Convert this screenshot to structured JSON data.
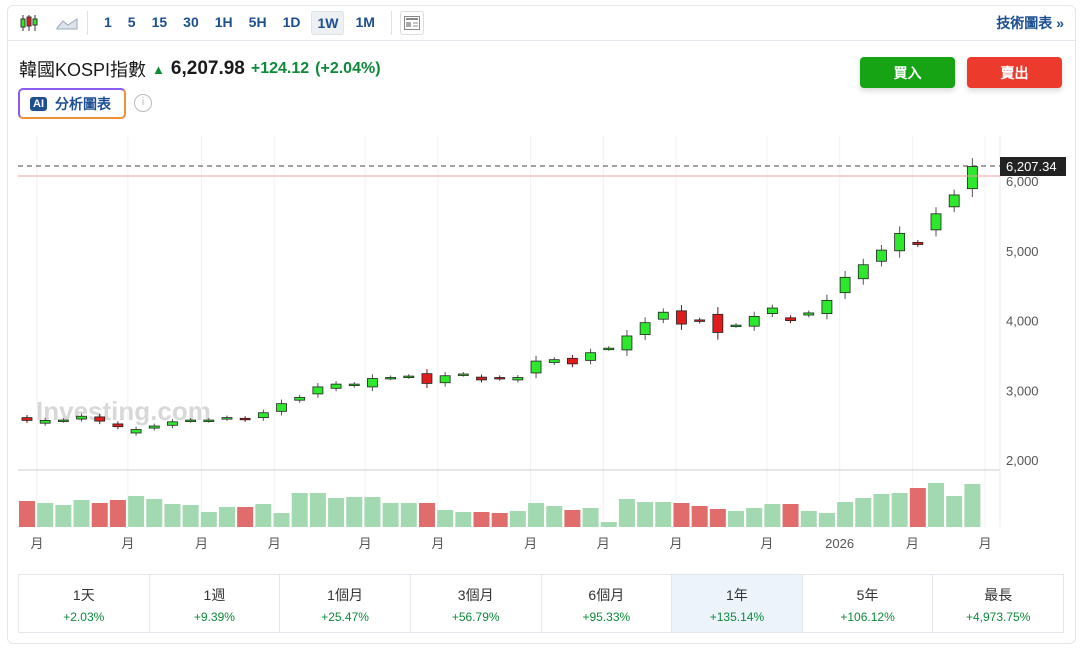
{
  "toolbar": {
    "intervals": [
      "1",
      "5",
      "15",
      "30",
      "1H",
      "5H",
      "1D",
      "1W",
      "1M"
    ],
    "active": "1W",
    "tech_link": "技術圖表 »"
  },
  "header": {
    "name": "韓國KOSPI指數",
    "price": "6,207.98",
    "change": "+124.12",
    "change_pct": "(+2.04%)",
    "ai_badge": "AI",
    "ai_label": "分析圖表",
    "info": "i"
  },
  "actions": {
    "buy": "買入",
    "sell": "賣出"
  },
  "watermark": "Investing.com",
  "colors": {
    "up": "#2ee82e",
    "down": "#e01b1b",
    "buy": "#16a314",
    "sell": "#ec3a2c",
    "link": "#1d4f91"
  },
  "chart_data": {
    "type": "candlestick",
    "last_price_label": "6,207.34",
    "y_ticks": [
      "6,000",
      "5,000",
      "4,000",
      "3,000",
      "2,000"
    ],
    "y_tick_values": [
      6000,
      5000,
      4000,
      3000,
      2000
    ],
    "x_labels": [
      {
        "t": "月",
        "w": 0.55
      },
      {
        "t": "月",
        "w": 5.55
      },
      {
        "t": "月",
        "w": 9.6
      },
      {
        "t": "月",
        "w": 13.6
      },
      {
        "t": "月",
        "w": 18.6
      },
      {
        "t": "月",
        "w": 22.6
      },
      {
        "t": "月",
        "w": 27.7
      },
      {
        "t": "月",
        "w": 31.7
      },
      {
        "t": "月",
        "w": 35.7
      },
      {
        "t": "月",
        "w": 40.7
      },
      {
        "t": "2026",
        "w": 44.7
      },
      {
        "t": "月",
        "w": 48.7
      },
      {
        "t": "月",
        "w": 52.7
      }
    ],
    "candles": [
      [
        2610,
        2570
      ],
      [
        2530,
        2570
      ],
      [
        2565,
        2575
      ],
      [
        2590,
        2630
      ],
      [
        2620,
        2560
      ],
      [
        2520,
        2480
      ],
      [
        2390,
        2440
      ],
      [
        2460,
        2490
      ],
      [
        2500,
        2550
      ],
      [
        2565,
        2575
      ],
      [
        2565,
        2575
      ],
      [
        2595,
        2610
      ],
      [
        2600,
        2580
      ],
      [
        2610,
        2680
      ],
      [
        2700,
        2810
      ],
      [
        2860,
        2900
      ],
      [
        2950,
        3050
      ],
      [
        3030,
        3090
      ],
      [
        3070,
        3090
      ],
      [
        3050,
        3170
      ],
      [
        3175,
        3185
      ],
      [
        3195,
        3205
      ],
      [
        3240,
        3100
      ],
      [
        3110,
        3210
      ],
      [
        3225,
        3235
      ],
      [
        3190,
        3150
      ],
      [
        3185,
        3170
      ],
      [
        3150,
        3185
      ],
      [
        3250,
        3420
      ],
      [
        3400,
        3440
      ],
      [
        3460,
        3380
      ],
      [
        3430,
        3540
      ],
      [
        3595,
        3605
      ],
      [
        3580,
        3780
      ],
      [
        3800,
        3970
      ],
      [
        4020,
        4120
      ],
      [
        4140,
        3950
      ],
      [
        4010,
        3990
      ],
      [
        4090,
        3830
      ],
      [
        3925,
        3935
      ],
      [
        3920,
        4060
      ],
      [
        4100,
        4180
      ],
      [
        4040,
        4000
      ],
      [
        4080,
        4110
      ],
      [
        4100,
        4290
      ],
      [
        4400,
        4620
      ],
      [
        4600,
        4800
      ],
      [
        4850,
        5010
      ],
      [
        5000,
        5250
      ],
      [
        5120,
        5090
      ],
      [
        5300,
        5530
      ],
      [
        5630,
        5800
      ],
      [
        5890,
        6207
      ]
    ],
    "volume_relative": [
      26,
      24,
      22,
      27,
      24,
      27,
      31,
      28,
      23,
      22,
      15,
      20,
      20,
      23,
      14,
      34,
      34,
      29,
      30,
      30,
      24,
      24,
      24,
      17,
      15,
      15,
      14,
      16,
      24,
      21,
      17,
      19,
      5,
      28,
      25,
      25,
      24,
      21,
      18,
      16,
      19,
      23,
      23,
      16,
      14,
      25,
      29,
      33,
      34,
      39,
      44,
      31,
      43
    ]
  },
  "performance": [
    {
      "label": "1天",
      "value": "+2.03%"
    },
    {
      "label": "1週",
      "value": "+9.39%"
    },
    {
      "label": "1個月",
      "value": "+25.47%"
    },
    {
      "label": "3個月",
      "value": "+56.79%"
    },
    {
      "label": "6個月",
      "value": "+95.33%"
    },
    {
      "label": "1年",
      "value": "+135.14%",
      "active": true
    },
    {
      "label": "5年",
      "value": "+106.12%"
    },
    {
      "label": "最長",
      "value": "+4,973.75%"
    }
  ]
}
